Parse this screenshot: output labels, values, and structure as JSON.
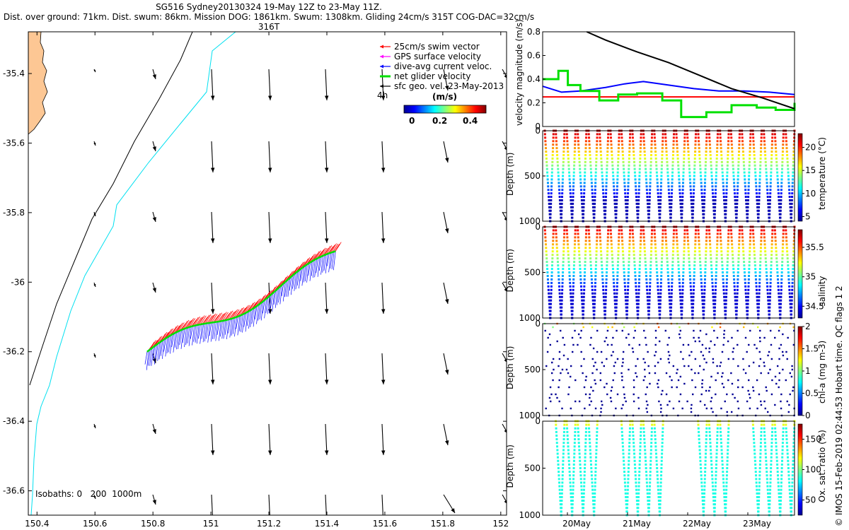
{
  "header": {
    "title_line1": "SG516 Sydney20130324 19-May 12Z to 23-May 11Z.",
    "title_line2": "Dist. over ground: 71km. Dist. swum: 86km. Mission DOG: 1861km. Swum: 1308km. Gliding 24cm/s 315T COG-DAC=32cm/s 316T"
  },
  "side_note": "© IMOS 15-Feb-2019 02:44:53 Hobart time. QC flags 1 2",
  "colors": {
    "land": "#fdc794",
    "swim": "#ff0000",
    "gps": "#ff00ff",
    "dac": "#0000ff",
    "net": "#00e000",
    "geo": "#000000",
    "iso200": "#000000",
    "iso1000": "#00e0f0"
  },
  "chart_data": [
    {
      "type": "map",
      "xlim": [
        150.37,
        152.02
      ],
      "ylim": [
        -36.67,
        -35.28
      ],
      "xticks": [
        "150.4",
        "150.6",
        "150.8",
        "151",
        "151.2",
        "151.4",
        "151.6",
        "151.8",
        "152"
      ],
      "yticks": [
        "-35.4",
        "-35.6",
        "-35.8",
        "-36",
        "-36.2",
        "-36.4",
        "-36.6"
      ],
      "legend": [
        "25cm/s swim vector",
        "GPS surface velocity",
        "dive-avg current veloc.",
        "net glider velocity",
        "sfc geo. vel. 23-May-2013"
      ],
      "legend_extra": "4h",
      "colorbar": {
        "label": "(m/s)",
        "ticks": [
          "0",
          "0.2",
          "0.4"
        ],
        "range": [
          0,
          0.5
        ]
      },
      "isobaths_label": "Isobaths: 0   200  1000m",
      "track": {
        "start": [
          150.78,
          -36.2
        ],
        "end": [
          151.43,
          -35.92
        ]
      }
    },
    {
      "type": "line",
      "ylabel": "velocity magnitude (m/s)",
      "ylim": [
        0,
        0.8
      ],
      "yticks": [
        "0",
        "0.2",
        "0.4",
        "0.6",
        "0.8"
      ],
      "xlim": [
        0,
        4
      ],
      "series": [
        {
          "name": "swim 25cm/s",
          "color": "#ff0000",
          "x": [
            0,
            4
          ],
          "y": [
            0.25,
            0.25
          ]
        },
        {
          "name": "dive-avg current",
          "color": "#0000ff",
          "x": [
            0,
            0.3,
            0.6,
            1.0,
            1.3,
            1.6,
            2.0,
            2.4,
            2.8,
            3.2,
            3.6,
            4.0
          ],
          "y": [
            0.34,
            0.29,
            0.3,
            0.33,
            0.36,
            0.38,
            0.35,
            0.32,
            0.3,
            0.3,
            0.29,
            0.27
          ]
        },
        {
          "name": "net glider velocity",
          "color": "#00e000",
          "x": [
            0,
            0.1,
            0.25,
            0.4,
            0.6,
            0.9,
            1.2,
            1.5,
            1.9,
            2.2,
            2.6,
            3.0,
            3.4,
            3.7,
            4.0
          ],
          "y": [
            0.4,
            0.4,
            0.47,
            0.35,
            0.3,
            0.22,
            0.27,
            0.28,
            0.22,
            0.08,
            0.12,
            0.18,
            0.16,
            0.14,
            0.2
          ]
        },
        {
          "name": "sfc geo. vel.",
          "color": "#000000",
          "x": [
            0.7,
            1.0,
            1.5,
            2.0,
            2.5,
            3.0,
            3.5,
            4.0
          ],
          "y": [
            0.8,
            0.73,
            0.63,
            0.54,
            0.43,
            0.32,
            0.24,
            0.15
          ]
        }
      ]
    },
    {
      "type": "scatter",
      "ylabel": "Depth (m)",
      "ylim": [
        1000,
        0
      ],
      "yticks": [
        "0",
        "500",
        "1000"
      ],
      "clabel": "temperature (°C)",
      "cticks": [
        "5",
        "10",
        "15",
        "20"
      ],
      "crange": [
        4,
        23
      ],
      "dives": 23
    },
    {
      "type": "scatter",
      "ylabel": "Depth (m)",
      "ylim": [
        1000,
        0
      ],
      "yticks": [
        "0",
        "500",
        "1000"
      ],
      "clabel": "salinity",
      "cticks": [
        "34.5",
        "35",
        "35.5"
      ],
      "crange": [
        34.3,
        35.8
      ],
      "dives": 23
    },
    {
      "type": "scatter",
      "ylabel": "Depth (m)",
      "ylim": [
        1000,
        0
      ],
      "yticks": [
        "0",
        "500",
        "1000"
      ],
      "clabel": "chl-a (mg m-3)",
      "cticks": [
        "0",
        "0.5",
        "1",
        "1.5",
        "2"
      ],
      "crange": [
        0,
        2
      ],
      "dives": 23
    },
    {
      "type": "scatter",
      "ylabel": "Depth (m)",
      "ylim": [
        1000,
        0
      ],
      "yticks": [
        "0",
        "500",
        "1000"
      ],
      "clabel": "Ox. sat. ratio (%)",
      "cticks": [
        "50",
        "100",
        "150"
      ],
      "crange": [
        25,
        175
      ],
      "xticks": [
        "20May",
        "21May",
        "22May",
        "23May"
      ],
      "dives": 23
    }
  ]
}
